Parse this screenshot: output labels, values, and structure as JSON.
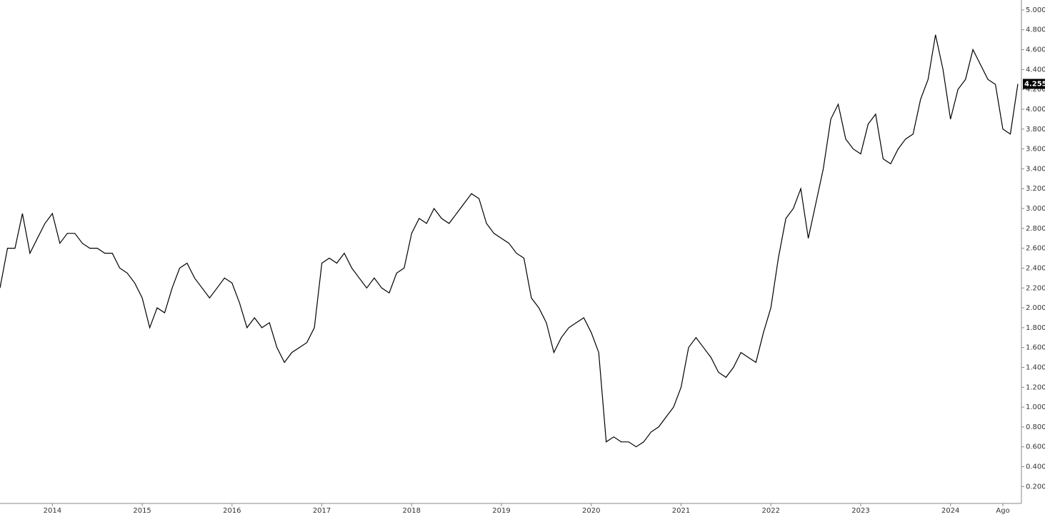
{
  "chart_data": {
    "type": "line",
    "categories": [
      null,
      null,
      null,
      null,
      null,
      null,
      null,
      "2014",
      null,
      null,
      null,
      null,
      null,
      null,
      null,
      null,
      null,
      null,
      null,
      "2015",
      null,
      null,
      null,
      null,
      null,
      null,
      null,
      null,
      null,
      null,
      null,
      "2016",
      null,
      null,
      null,
      null,
      null,
      null,
      null,
      null,
      null,
      null,
      null,
      "2017",
      null,
      null,
      null,
      null,
      null,
      null,
      null,
      null,
      null,
      null,
      null,
      "2018",
      null,
      null,
      null,
      null,
      null,
      null,
      null,
      null,
      null,
      null,
      null,
      "2019",
      null,
      null,
      null,
      null,
      null,
      null,
      null,
      null,
      null,
      null,
      null,
      "2020",
      null,
      null,
      null,
      null,
      null,
      null,
      null,
      null,
      null,
      null,
      null,
      "2021",
      null,
      null,
      null,
      null,
      null,
      null,
      null,
      null,
      null,
      null,
      null,
      "2022",
      null,
      null,
      null,
      null,
      null,
      null,
      null,
      null,
      null,
      null,
      null,
      "2023",
      null,
      null,
      null,
      null,
      null,
      null,
      null,
      null,
      null,
      null,
      null,
      "2024",
      null,
      null,
      null,
      null,
      null,
      null,
      "Ago",
      null,
      null
    ],
    "series": [
      {
        "color": "#000000",
        "values": [
          2.2,
          2.6,
          2.6,
          2.95,
          2.55,
          2.7,
          2.85,
          2.95,
          2.65,
          2.75,
          2.75,
          2.65,
          2.6,
          2.6,
          2.55,
          2.55,
          2.4,
          2.35,
          2.25,
          2.1,
          1.8,
          2.0,
          1.95,
          2.2,
          2.4,
          2.45,
          2.3,
          2.2,
          2.1,
          2.2,
          2.3,
          2.25,
          2.05,
          1.8,
          1.9,
          1.8,
          1.85,
          1.6,
          1.45,
          1.55,
          1.6,
          1.65,
          1.8,
          2.45,
          2.5,
          2.45,
          2.55,
          2.4,
          2.3,
          2.2,
          2.3,
          2.2,
          2.15,
          2.35,
          2.4,
          2.75,
          2.9,
          2.85,
          3.0,
          2.9,
          2.85,
          2.95,
          3.05,
          3.15,
          3.1,
          2.85,
          2.75,
          2.7,
          2.65,
          2.55,
          2.5,
          2.1,
          2.0,
          1.85,
          1.55,
          1.7,
          1.8,
          1.85,
          1.9,
          1.75,
          1.55,
          0.65,
          0.7,
          0.65,
          0.65,
          0.6,
          0.65,
          0.75,
          0.8,
          0.9,
          1.0,
          1.2,
          1.6,
          1.7,
          1.6,
          1.5,
          1.35,
          1.3,
          1.4,
          1.55,
          1.5,
          1.45,
          1.75,
          2.0,
          2.5,
          2.9,
          3.0,
          3.2,
          2.7,
          3.05,
          3.4,
          3.9,
          4.05,
          3.7,
          3.6,
          3.55,
          3.85,
          3.95,
          3.5,
          3.45,
          3.6,
          3.7,
          3.75,
          4.1,
          4.3,
          4.75,
          4.4,
          3.9,
          4.2,
          4.3,
          4.6,
          4.45,
          4.3,
          4.25,
          3.8,
          3.75,
          4.255
        ]
      }
    ],
    "last_value": {
      "value": 4.255,
      "label": "4.255"
    },
    "ylim": [
      0.03,
      5.1
    ],
    "yticks": [
      {
        "value": 0.2,
        "label": "0.200"
      },
      {
        "value": 0.4,
        "label": "0.400"
      },
      {
        "value": 0.6,
        "label": "0.600"
      },
      {
        "value": 0.8,
        "label": "0.800"
      },
      {
        "value": 1.0,
        "label": "1.000"
      },
      {
        "value": 1.2,
        "label": "1.200"
      },
      {
        "value": 1.4,
        "label": "1.400"
      },
      {
        "value": 1.6,
        "label": "1.600"
      },
      {
        "value": 1.8,
        "label": "1.800"
      },
      {
        "value": 2.0,
        "label": "2.000"
      },
      {
        "value": 2.2,
        "label": "2.200"
      },
      {
        "value": 2.4,
        "label": "2.400"
      },
      {
        "value": 2.6,
        "label": "2.600"
      },
      {
        "value": 2.8,
        "label": "2.800"
      },
      {
        "value": 3.0,
        "label": "3.000"
      },
      {
        "value": 3.2,
        "label": "3.200"
      },
      {
        "value": 3.4,
        "label": "3.400"
      },
      {
        "value": 3.6,
        "label": "3.600"
      },
      {
        "value": 3.8,
        "label": "3.800"
      },
      {
        "value": 4.0,
        "label": "4.000"
      },
      {
        "value": 4.2,
        "label": "4.200"
      },
      {
        "value": 4.4,
        "label": "4.400"
      },
      {
        "value": 4.6,
        "label": "4.600"
      },
      {
        "value": 4.8,
        "label": "4.800"
      },
      {
        "value": 5.0,
        "label": "5.000"
      }
    ],
    "grid": false
  }
}
